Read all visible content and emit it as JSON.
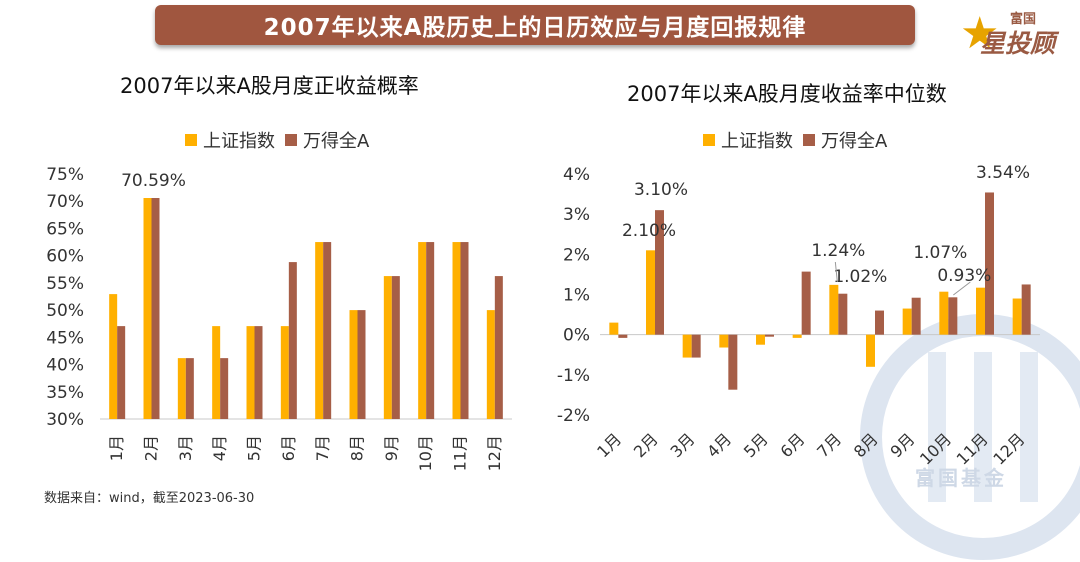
{
  "banner_title": "2007年以来A股历史上的日历效应与月度回报规律",
  "logo": {
    "small": "富国",
    "big": "星投顾"
  },
  "watermark_text": "富国基金",
  "source_note": "数据来自：wind，截至2023-06-30",
  "colors": {
    "shanghai": "#FFB000",
    "wind": "#A65E47",
    "banner": "#A0563F"
  },
  "chart_data": [
    {
      "type": "bar",
      "title": "2007年以来A股月度正收益概率",
      "categories": [
        "1月",
        "2月",
        "3月",
        "4月",
        "5月",
        "6月",
        "7月",
        "8月",
        "9月",
        "10月",
        "11月",
        "12月"
      ],
      "series": [
        {
          "name": "上证指数",
          "values": [
            52.94,
            70.59,
            41.18,
            47.06,
            47.06,
            47.06,
            62.5,
            50.0,
            56.25,
            62.5,
            62.5,
            50.0
          ]
        },
        {
          "name": "万得全A",
          "values": [
            47.06,
            70.59,
            41.18,
            41.18,
            47.06,
            58.82,
            62.5,
            50.0,
            56.25,
            62.5,
            62.5,
            56.25
          ]
        }
      ],
      "ylim": [
        30,
        75
      ],
      "yticks": [
        "30%",
        "35%",
        "40%",
        "45%",
        "50%",
        "55%",
        "60%",
        "65%",
        "70%",
        "75%"
      ],
      "annotations": [
        {
          "text": "70.59%",
          "category": "2月"
        }
      ],
      "legend": "top-center"
    },
    {
      "type": "bar",
      "title": "2007年以来A股月度收益率中位数",
      "categories": [
        "1月",
        "2月",
        "3月",
        "4月",
        "5月",
        "6月",
        "7月",
        "8月",
        "9月",
        "10月",
        "11月",
        "12月"
      ],
      "series": [
        {
          "name": "上证指数",
          "values": [
            0.3,
            2.1,
            -0.57,
            -0.32,
            -0.25,
            -0.08,
            1.24,
            -0.8,
            0.65,
            1.07,
            1.17,
            0.9
          ]
        },
        {
          "name": "万得全A",
          "values": [
            -0.08,
            3.1,
            -0.57,
            -1.37,
            -0.05,
            1.57,
            1.02,
            0.6,
            0.92,
            0.93,
            3.54,
            1.25
          ]
        }
      ],
      "ylim": [
        -2,
        4
      ],
      "yticks": [
        "-2%",
        "-1%",
        "0%",
        "1%",
        "2%",
        "3%",
        "4%"
      ],
      "annotations": [
        {
          "text": "2.10%",
          "category": "2月"
        },
        {
          "text": "3.10%",
          "category": "2月"
        },
        {
          "text": "1.24%",
          "category": "7月"
        },
        {
          "text": "1.02%",
          "category": "7月"
        },
        {
          "text": "1.07%",
          "category": "10月"
        },
        {
          "text": "0.93%",
          "category": "10月"
        },
        {
          "text": "3.54%",
          "category": "11月"
        }
      ],
      "legend": "top-center"
    }
  ]
}
